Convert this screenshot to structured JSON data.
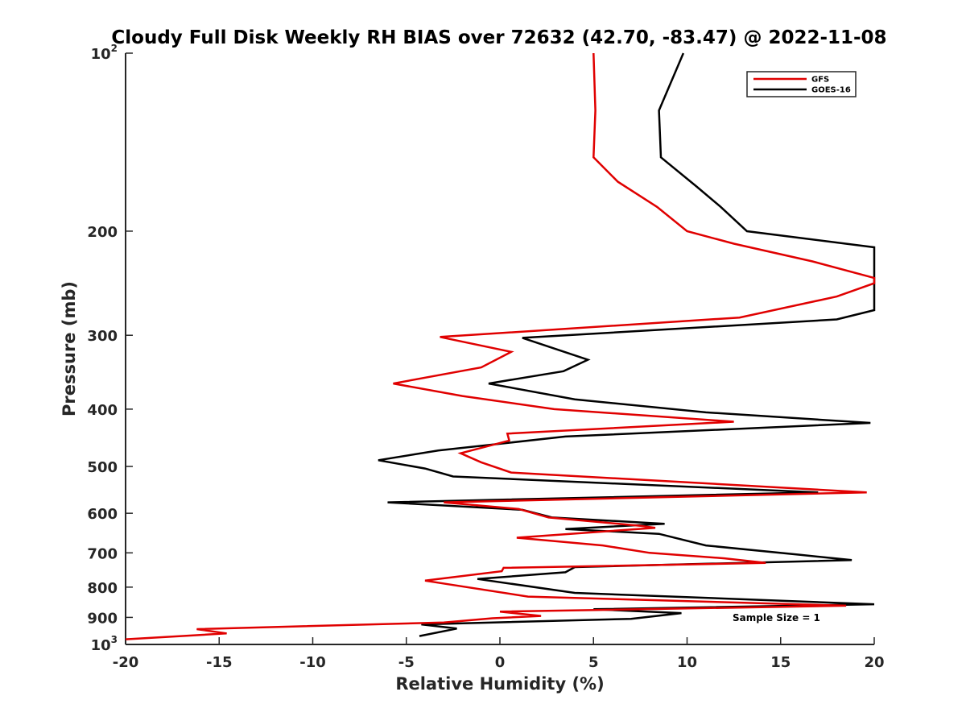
{
  "chart_data": {
    "type": "line",
    "title": "Cloudy Full Disk Weekly RH BIAS over 72632 (42.70, -83.47) @ 2022-11-08",
    "xlabel": "Relative Humidity (%)",
    "ylabel": "Pressure (mb)",
    "xlim": [
      -20,
      20
    ],
    "ylim": [
      100,
      1000
    ],
    "yscale": "log",
    "y_reversed": true,
    "grid": false,
    "legend_position": "top-right",
    "annotation": "Sample Size = 1",
    "x_ticks": [
      {
        "value": -20,
        "label": "-20"
      },
      {
        "value": -15,
        "label": "-15"
      },
      {
        "value": -10,
        "label": "-10"
      },
      {
        "value": -5,
        "label": "-5"
      },
      {
        "value": 0,
        "label": "0"
      },
      {
        "value": 5,
        "label": "5"
      },
      {
        "value": 10,
        "label": "10"
      },
      {
        "value": 15,
        "label": "15"
      },
      {
        "value": 20,
        "label": "20"
      }
    ],
    "y_ticks": [
      {
        "value": 100,
        "base": "10",
        "exp": "2"
      },
      {
        "value": 200,
        "label": "200"
      },
      {
        "value": 300,
        "label": "300"
      },
      {
        "value": 400,
        "label": "400"
      },
      {
        "value": 500,
        "label": "500"
      },
      {
        "value": 600,
        "label": "600"
      },
      {
        "value": 700,
        "label": "700"
      },
      {
        "value": 800,
        "label": "800"
      },
      {
        "value": 900,
        "label": "900"
      },
      {
        "value": 1000,
        "base": "10",
        "exp": "3"
      }
    ],
    "series": [
      {
        "name": "GFS",
        "color": "#e00000",
        "points": [
          [
            5.0,
            100
          ],
          [
            5.1,
            125
          ],
          [
            5.0,
            150
          ],
          [
            6.3,
            165
          ],
          [
            8.4,
            182
          ],
          [
            10.0,
            200
          ],
          [
            12.5,
            210
          ],
          [
            16.7,
            225
          ],
          [
            20.0,
            240
          ],
          [
            20.0,
            245
          ],
          [
            18.0,
            258
          ],
          [
            12.8,
            280
          ],
          [
            -3.2,
            302
          ],
          [
            0.6,
            320
          ],
          [
            -1.0,
            340
          ],
          [
            -5.7,
            362
          ],
          [
            -2.0,
            380
          ],
          [
            2.9,
            400
          ],
          [
            12.5,
            420
          ],
          [
            0.4,
            440
          ],
          [
            0.5,
            452
          ],
          [
            -2.1,
            475
          ],
          [
            -1.0,
            492
          ],
          [
            0.6,
            512
          ],
          [
            19.6,
            553
          ],
          [
            -3.0,
            575
          ],
          [
            1.0,
            590
          ],
          [
            2.6,
            610
          ],
          [
            7.5,
            630
          ],
          [
            8.3,
            635
          ],
          [
            0.9,
            660
          ],
          [
            5.5,
            680
          ],
          [
            8.0,
            700
          ],
          [
            12.0,
            715
          ],
          [
            14.2,
            728
          ],
          [
            0.2,
            742
          ],
          [
            0.1,
            752
          ],
          [
            -4.0,
            780
          ],
          [
            1.5,
            830
          ],
          [
            18.5,
            860
          ],
          [
            0.0,
            880
          ],
          [
            2.2,
            895
          ],
          [
            -0.4,
            903
          ],
          [
            -3.0,
            918
          ],
          [
            -16.2,
            942
          ],
          [
            -14.6,
            958
          ],
          [
            -20.0,
            980
          ]
        ]
      },
      {
        "name": "GOES-16",
        "color": "#000000",
        "points": [
          [
            9.8,
            100
          ],
          [
            8.5,
            125
          ],
          [
            8.6,
            150
          ],
          [
            10.5,
            168
          ],
          [
            11.8,
            182
          ],
          [
            13.2,
            200
          ],
          [
            20.0,
            213
          ],
          [
            20.0,
            217
          ],
          [
            20.0,
            272
          ],
          [
            18.0,
            282
          ],
          [
            1.2,
            303
          ],
          [
            4.7,
            330
          ],
          [
            3.4,
            345
          ],
          [
            -0.6,
            362
          ],
          [
            4.0,
            385
          ],
          [
            11.0,
            405
          ],
          [
            19.8,
            422
          ],
          [
            3.5,
            445
          ],
          [
            -3.3,
            470
          ],
          [
            -6.5,
            488
          ],
          [
            -4.0,
            504
          ],
          [
            -2.5,
            520
          ],
          [
            17.0,
            553
          ],
          [
            -6.0,
            575
          ],
          [
            1.2,
            592
          ],
          [
            2.8,
            610
          ],
          [
            8.8,
            625
          ],
          [
            3.5,
            638
          ],
          [
            8.5,
            650
          ],
          [
            11.0,
            680
          ],
          [
            16.0,
            705
          ],
          [
            18.8,
            720
          ],
          [
            4.0,
            740
          ],
          [
            3.5,
            755
          ],
          [
            -1.2,
            775
          ],
          [
            4.0,
            818
          ],
          [
            20.0,
            855
          ],
          [
            5.0,
            872
          ],
          [
            9.7,
            885
          ],
          [
            7.0,
            905
          ],
          [
            -4.2,
            925
          ],
          [
            -2.3,
            940
          ],
          [
            -4.3,
            968
          ]
        ]
      }
    ]
  }
}
